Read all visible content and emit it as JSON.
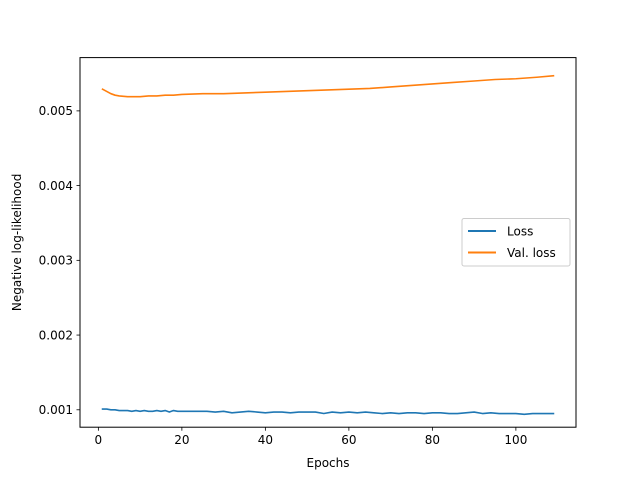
{
  "chart_data": {
    "type": "line",
    "title": "",
    "xlabel": "Epochs",
    "ylabel": "Negative log-likelihood",
    "xlim": [
      -4.4,
      114.4
    ],
    "ylim": [
      0.000767,
      0.005713
    ],
    "xticks": [
      0,
      20,
      40,
      60,
      80,
      100
    ],
    "xtick_labels": [
      "0",
      "20",
      "40",
      "60",
      "80",
      "100"
    ],
    "yticks": [
      0.001,
      0.002,
      0.003,
      0.004,
      0.005
    ],
    "ytick_labels": [
      "0.001",
      "0.002",
      "0.003",
      "0.004",
      "0.005"
    ],
    "grid": false,
    "legend": "center-right",
    "series": [
      {
        "name": "Loss",
        "color": "#1f77b4",
        "x": [
          1,
          2,
          3,
          4,
          5,
          6,
          7,
          8,
          9,
          10,
          11,
          12,
          13,
          14,
          15,
          16,
          17,
          18,
          19,
          20,
          22,
          24,
          26,
          28,
          30,
          32,
          34,
          36,
          38,
          40,
          42,
          44,
          46,
          48,
          50,
          52,
          54,
          56,
          58,
          60,
          62,
          64,
          66,
          68,
          70,
          72,
          74,
          76,
          78,
          80,
          82,
          84,
          86,
          88,
          90,
          92,
          94,
          96,
          98,
          100,
          102,
          104,
          106,
          108,
          109
        ],
        "values": [
          0.00101,
          0.00101,
          0.001,
          0.001,
          0.00099,
          0.00099,
          0.00099,
          0.00098,
          0.00099,
          0.00098,
          0.00099,
          0.00098,
          0.00098,
          0.00099,
          0.00098,
          0.00099,
          0.00097,
          0.00099,
          0.00098,
          0.00098,
          0.00098,
          0.00098,
          0.00098,
          0.00097,
          0.00098,
          0.00096,
          0.00097,
          0.00098,
          0.00097,
          0.00096,
          0.00097,
          0.00097,
          0.00096,
          0.00097,
          0.00097,
          0.00097,
          0.00095,
          0.00097,
          0.00096,
          0.00097,
          0.00096,
          0.00097,
          0.00096,
          0.00095,
          0.00096,
          0.00095,
          0.00096,
          0.00096,
          0.00095,
          0.00096,
          0.00096,
          0.00095,
          0.00095,
          0.00096,
          0.00097,
          0.00095,
          0.00096,
          0.00095,
          0.00095,
          0.00095,
          0.00094,
          0.00095,
          0.00095,
          0.00095,
          0.00095
        ]
      },
      {
        "name": "Val. loss",
        "color": "#ff7f0e",
        "x": [
          1,
          2,
          3,
          4,
          5,
          6,
          7,
          8,
          9,
          10,
          12,
          14,
          16,
          18,
          20,
          25,
          30,
          35,
          40,
          45,
          50,
          55,
          60,
          65,
          70,
          75,
          80,
          85,
          90,
          95,
          100,
          105,
          109
        ],
        "values": [
          0.00529,
          0.00526,
          0.00523,
          0.00521,
          0.0052,
          0.005195,
          0.00519,
          0.00519,
          0.00519,
          0.00519,
          0.0052,
          0.0052,
          0.00521,
          0.00521,
          0.00522,
          0.00523,
          0.00523,
          0.00524,
          0.00525,
          0.00526,
          0.00527,
          0.00528,
          0.00529,
          0.0053,
          0.00532,
          0.00534,
          0.00536,
          0.00538,
          0.0054,
          0.00542,
          0.00543,
          0.00545,
          0.00547
        ]
      }
    ]
  }
}
